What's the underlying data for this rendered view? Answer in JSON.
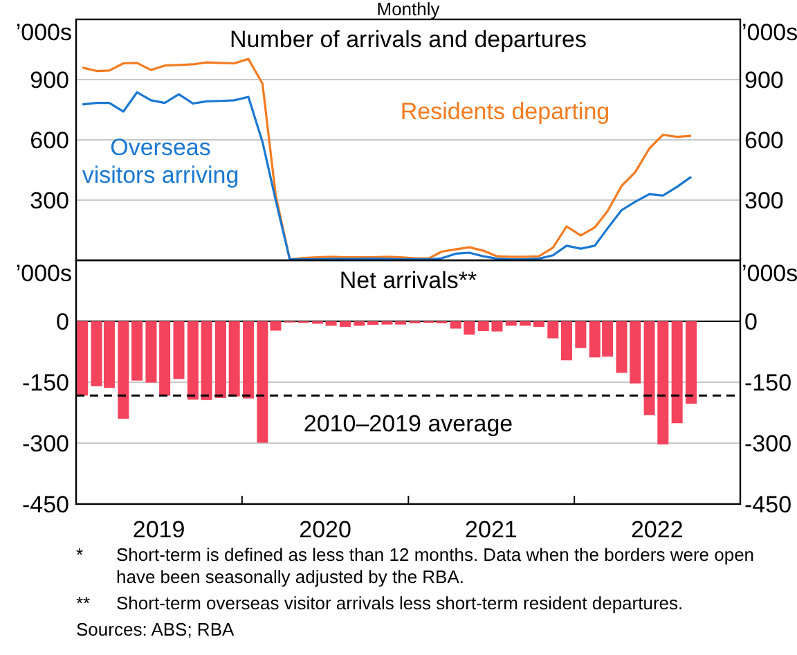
{
  "chart_data": [
    {
      "type": "line",
      "subtitle": "Monthly",
      "title": "Number of arrivals and departures",
      "ylabel": "’000s",
      "y2label": "’000s",
      "x": [
        "2019-01-15",
        "2019-02-15",
        "2019-03-15",
        "2019-04-15",
        "2019-05-15",
        "2019-06-15",
        "2019-07-15",
        "2019-08-15",
        "2019-09-15",
        "2019-10-15",
        "2019-11-15",
        "2019-12-15",
        "2020-01-15",
        "2020-02-15",
        "2020-03-15",
        "2020-04-15",
        "2020-05-15",
        "2020-06-15",
        "2020-07-15",
        "2020-08-15",
        "2020-09-15",
        "2020-10-15",
        "2020-11-15",
        "2020-12-15",
        "2021-01-15",
        "2021-02-15",
        "2021-03-15",
        "2021-04-15",
        "2021-05-15",
        "2021-06-15",
        "2021-07-15",
        "2021-08-15",
        "2021-09-15",
        "2021-10-15",
        "2021-11-15",
        "2021-12-15",
        "2022-01-15",
        "2022-02-15",
        "2022-03-15",
        "2022-04-15",
        "2022-05-15",
        "2022-06-15",
        "2022-07-15",
        "2022-08-15",
        "2022-09-15"
      ],
      "xlim": [
        "2019-01-01",
        "2023-01-01"
      ],
      "series": [
        {
          "name": "Residents departing",
          "color": "#f47b20",
          "values": [
            960,
            943,
            945,
            981,
            983,
            948,
            970,
            973,
            976,
            986,
            983,
            981,
            1003,
            880,
            325,
            5,
            12,
            15,
            18,
            15,
            15,
            15,
            18,
            15,
            10,
            10,
            43,
            55,
            65,
            48,
            20,
            18,
            18,
            20,
            63,
            169,
            124,
            164,
            245,
            371,
            439,
            557,
            625,
            615,
            620
          ]
        },
        {
          "name": "Overseas visitors arriving",
          "color": "#1a78d2",
          "values": [
            776,
            784,
            784,
            741,
            837,
            797,
            784,
            827,
            781,
            792,
            794,
            797,
            814,
            590,
            300,
            5,
            5,
            6,
            7,
            7,
            7,
            8,
            7,
            6,
            5,
            5,
            10,
            33,
            38,
            20,
            8,
            5,
            5,
            8,
            25,
            73,
            58,
            73,
            159,
            250,
            292,
            330,
            323,
            366,
            416
          ]
        }
      ],
      "ylim": [
        0,
        1200
      ],
      "yticks": [
        300,
        600,
        900
      ],
      "y2lim": [
        0,
        1200
      ],
      "y2ticks": [
        300,
        600,
        900
      ],
      "grid": "y",
      "tick_labels": "y",
      "line_style": "solid"
    },
    {
      "type": "bar",
      "title": "Net arrivals**",
      "ylabel": "’000s",
      "y2label": "’000s",
      "x": [
        "2019-01-15",
        "2019-02-15",
        "2019-03-15",
        "2019-04-15",
        "2019-05-15",
        "2019-06-15",
        "2019-07-15",
        "2019-08-15",
        "2019-09-15",
        "2019-10-15",
        "2019-11-15",
        "2019-12-15",
        "2020-01-15",
        "2020-02-15",
        "2020-03-15",
        "2020-04-15",
        "2020-05-15",
        "2020-06-15",
        "2020-07-15",
        "2020-08-15",
        "2020-09-15",
        "2020-10-15",
        "2020-11-15",
        "2020-12-15",
        "2021-01-15",
        "2021-02-15",
        "2021-03-15",
        "2021-04-15",
        "2021-05-15",
        "2021-06-15",
        "2021-07-15",
        "2021-08-15",
        "2021-09-15",
        "2021-10-15",
        "2021-11-15",
        "2021-12-15",
        "2022-01-15",
        "2022-02-15",
        "2022-03-15",
        "2022-04-15",
        "2022-05-15",
        "2022-06-15",
        "2022-07-15",
        "2022-08-15",
        "2022-09-15"
      ],
      "values": [
        -183,
        -160,
        -164,
        -240,
        -146,
        -151,
        -183,
        -142,
        -193,
        -194,
        -189,
        -185,
        -190,
        -299,
        -23,
        -3,
        -4,
        -6,
        -11,
        -14,
        -11,
        -9,
        -8,
        -8,
        -5,
        -4,
        -5,
        -18,
        -33,
        -24,
        -25,
        -11,
        -11,
        -14,
        -42,
        -96,
        -66,
        -89,
        -87,
        -127,
        -153,
        -231,
        -303,
        -251,
        -203
      ],
      "color": "#f4435c",
      "xlim": [
        "2019-01-01",
        "2023-01-01"
      ],
      "xticks": [
        {
          "value": "2019-07-02",
          "label": "2019"
        },
        {
          "value": "2020-01-01",
          "label": null
        },
        {
          "value": "2020-07-02",
          "label": "2020"
        },
        {
          "value": "2021-01-01",
          "label": null
        },
        {
          "value": "2021-07-02",
          "label": "2021"
        },
        {
          "value": "2022-01-01",
          "label": null
        },
        {
          "value": "2022-07-02",
          "label": "2022"
        }
      ],
      "ylim": [
        -450,
        150
      ],
      "yticks": [
        -450,
        -300,
        -150,
        0
      ],
      "y2lim": [
        -450,
        150
      ],
      "y2ticks": [
        -450,
        -300,
        -150,
        0
      ],
      "grid": "y",
      "ref_lines": [
        {
          "axis": "y",
          "value": -183,
          "label": "2010–2019 average",
          "color": "#000000",
          "line_style": "dashed"
        }
      ],
      "annotations": [
        "* Short-term is defined as less than 12 months. Data when the borders were open have been seasonally adjusted by the RBA.",
        "** Short-term overseas visitor arrivals less short-term resident departures.",
        "Sources: ABS; RBA"
      ]
    }
  ]
}
